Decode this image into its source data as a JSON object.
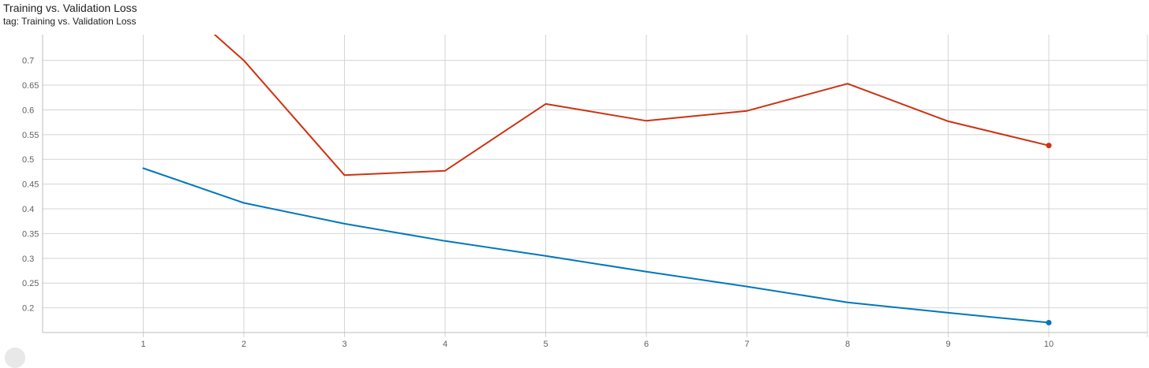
{
  "header": {
    "title": "Training vs. Validation Loss",
    "subtitle": "tag: Training vs. Validation Loss"
  },
  "chart_data": {
    "type": "line",
    "title": "Training vs. Validation Loss",
    "xlabel": "",
    "ylabel": "",
    "x": [
      1,
      2,
      3,
      4,
      5,
      6,
      7,
      8,
      9,
      10
    ],
    "x_ticks": [
      1,
      2,
      3,
      4,
      5,
      6,
      7,
      8,
      9,
      10
    ],
    "y_ticks": [
      0.2,
      0.25,
      0.3,
      0.35,
      0.4,
      0.45,
      0.5,
      0.55,
      0.6,
      0.65,
      0.7
    ],
    "xlim": [
      0,
      10.98
    ],
    "ylim": [
      0.15,
      0.752
    ],
    "grid": true,
    "series": [
      {
        "color": "#0077bb",
        "values": [
          0.482,
          0.412,
          0.37,
          0.335,
          0.305,
          0.273,
          0.243,
          0.211,
          0.19,
          0.17
        ],
        "end_marker": true
      },
      {
        "color": "#cc3311",
        "values": [
          0.88,
          0.7,
          0.468,
          0.477,
          0.612,
          0.578,
          0.598,
          0.653,
          0.577,
          0.528
        ],
        "end_marker": true
      }
    ]
  }
}
